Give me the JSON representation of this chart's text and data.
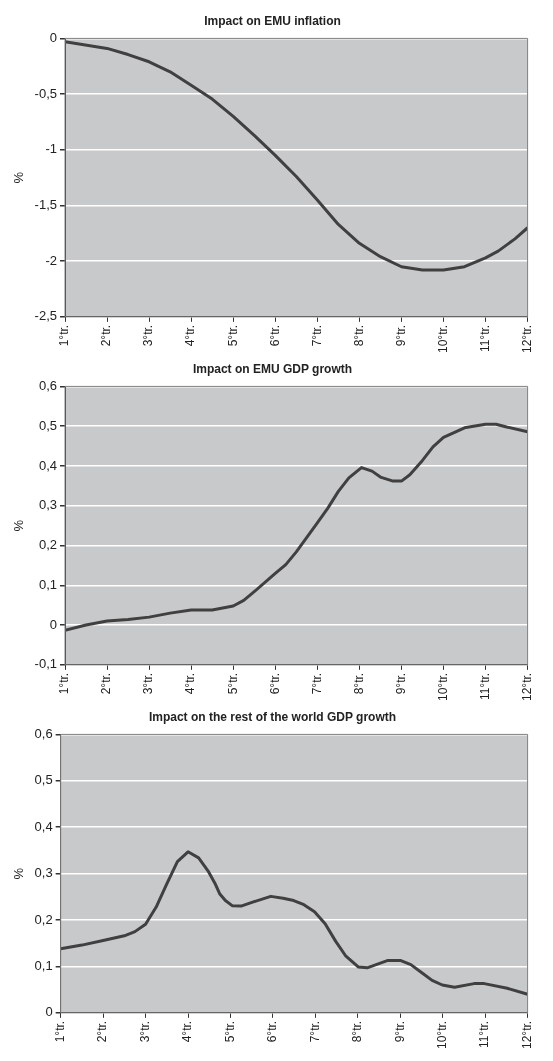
{
  "chart_data": [
    {
      "type": "line",
      "title": "Impact on EMU inflation",
      "ylabel": "%",
      "grid": "y",
      "legend": false,
      "marker": "none",
      "line_style": "solid",
      "xlim": [
        1,
        12
      ],
      "xticks": [
        {
          "value": 1,
          "label": "1°tr."
        },
        {
          "value": 2,
          "label": "2°tr."
        },
        {
          "value": 3,
          "label": "3°tr."
        },
        {
          "value": 4,
          "label": "4°tr."
        },
        {
          "value": 5,
          "label": "5°tr."
        },
        {
          "value": 6,
          "label": "6°tr."
        },
        {
          "value": 7,
          "label": "7°tr."
        },
        {
          "value": 8,
          "label": "8°tr."
        },
        {
          "value": 9,
          "label": "9°tr."
        },
        {
          "value": 10,
          "label": "10°tr."
        },
        {
          "value": 11,
          "label": "11°tr."
        },
        {
          "value": 12,
          "label": "12°tr."
        }
      ],
      "ylim": [
        -2.5,
        0
      ],
      "yticks": [
        {
          "value": -2.5,
          "label": "-2,5"
        },
        -2,
        {
          "value": -1.5,
          "label": "-1,5"
        },
        -1,
        {
          "value": -0.5,
          "label": "-0,5"
        },
        0
      ],
      "series": [
        {
          "color": "#404040",
          "x": [
            1,
            2,
            2.5,
            3,
            3.5,
            4,
            4.5,
            5,
            5.5,
            6,
            6.5,
            7,
            7.5,
            8,
            8.5,
            9,
            9.5,
            10,
            10.5,
            11,
            11.3,
            11.7,
            12
          ],
          "values": [
            -0.03,
            -0.09,
            -0.145,
            -0.21,
            -0.3,
            -0.42,
            -0.545,
            -0.7,
            -0.87,
            -1.05,
            -1.24,
            -1.45,
            -1.67,
            -1.84,
            -1.96,
            -2.05,
            -2.08,
            -2.08,
            -2.05,
            -1.97,
            -1.91,
            -1.8,
            -1.7
          ]
        }
      ]
    },
    {
      "type": "line",
      "title": "Impact on EMU GDP growth",
      "ylabel": "%",
      "grid": "y",
      "legend": false,
      "marker": "none",
      "line_style": "solid",
      "xlim": [
        1,
        12
      ],
      "xticks": [
        {
          "value": 1,
          "label": "1°tr."
        },
        {
          "value": 2,
          "label": "2°tr."
        },
        {
          "value": 3,
          "label": "3°tr."
        },
        {
          "value": 4,
          "label": "4°tr."
        },
        {
          "value": 5,
          "label": "5°tr."
        },
        {
          "value": 6,
          "label": "6°tr."
        },
        {
          "value": 7,
          "label": "7°tr."
        },
        {
          "value": 8,
          "label": "8°tr."
        },
        {
          "value": 9,
          "label": "9°tr."
        },
        {
          "value": 10,
          "label": "10°tr."
        },
        {
          "value": 11,
          "label": "11°tr."
        },
        {
          "value": 12,
          "label": "12°tr."
        }
      ],
      "ylim": [
        -0.1,
        0.6
      ],
      "yticks": [
        {
          "value": -0.1,
          "label": "-0,1"
        },
        0,
        {
          "value": 0.1,
          "label": "0,1"
        },
        {
          "value": 0.2,
          "label": "0,2"
        },
        {
          "value": 0.3,
          "label": "0,3"
        },
        {
          "value": 0.4,
          "label": "0,4"
        },
        {
          "value": 0.5,
          "label": "0,5"
        },
        {
          "value": 0.6,
          "label": "0,6"
        }
      ],
      "series": [
        {
          "color": "#404040",
          "x": [
            1,
            1.5,
            2,
            2.5,
            3,
            3.5,
            4,
            4.5,
            5,
            5.25,
            5.5,
            6,
            6.25,
            6.5,
            7,
            7.25,
            7.5,
            7.75,
            8.05,
            8.3,
            8.5,
            8.8,
            9,
            9.2,
            9.5,
            9.75,
            10,
            10.5,
            11,
            11.25,
            11.5,
            12
          ],
          "values": [
            -0.013,
            0.0,
            0.01,
            0.014,
            0.02,
            0.03,
            0.038,
            0.038,
            0.048,
            0.062,
            0.084,
            0.13,
            0.152,
            0.184,
            0.257,
            0.294,
            0.336,
            0.37,
            0.396,
            0.387,
            0.372,
            0.362,
            0.362,
            0.378,
            0.414,
            0.448,
            0.472,
            0.496,
            0.505,
            0.505,
            0.498,
            0.486
          ]
        }
      ]
    },
    {
      "type": "line",
      "title": "Impact on the rest of the world GDP growth",
      "ylabel": "%",
      "grid": "y",
      "legend": false,
      "marker": "none",
      "line_style": "solid",
      "xlim": [
        1,
        12
      ],
      "xticks": [
        {
          "value": 1,
          "label": "1°tr."
        },
        {
          "value": 2,
          "label": "2°tr."
        },
        {
          "value": 3,
          "label": "3°tr."
        },
        {
          "value": 4,
          "label": "4°tr."
        },
        {
          "value": 5,
          "label": "5°tr."
        },
        {
          "value": 6,
          "label": "6°tr."
        },
        {
          "value": 7,
          "label": "7°tr."
        },
        {
          "value": 8,
          "label": "8°tr."
        },
        {
          "value": 9,
          "label": "9°tr."
        },
        {
          "value": 10,
          "label": "10°tr."
        },
        {
          "value": 11,
          "label": "11°tr."
        },
        {
          "value": 12,
          "label": "12°tr."
        }
      ],
      "ylim": [
        0,
        0.6
      ],
      "yticks": [
        0,
        {
          "value": 0.1,
          "label": "0,1"
        },
        {
          "value": 0.2,
          "label": "0,2"
        },
        {
          "value": 0.3,
          "label": "0,3"
        },
        {
          "value": 0.4,
          "label": "0,4"
        },
        {
          "value": 0.5,
          "label": "0,5"
        },
        {
          "value": 0.6,
          "label": "0,6"
        }
      ],
      "series": [
        {
          "color": "#404040",
          "x": [
            1,
            1.5,
            2,
            2.5,
            2.75,
            3,
            3.25,
            3.5,
            3.75,
            4,
            4.25,
            4.47,
            4.63,
            4.75,
            4.88,
            5.04,
            5.25,
            5.54,
            5.95,
            6.24,
            6.49,
            6.73,
            6.98,
            7.23,
            7.48,
            7.72,
            8.01,
            8.22,
            8.71,
            9,
            9.25,
            9.5,
            9.75,
            9.99,
            10.28,
            10.74,
            10.98,
            11.52,
            12
          ],
          "values": [
            0.138,
            0.146,
            0.156,
            0.166,
            0.175,
            0.191,
            0.228,
            0.278,
            0.326,
            0.347,
            0.334,
            0.306,
            0.28,
            0.256,
            0.242,
            0.231,
            0.23,
            0.239,
            0.251,
            0.247,
            0.242,
            0.233,
            0.218,
            0.192,
            0.154,
            0.122,
            0.099,
            0.097,
            0.113,
            0.113,
            0.104,
            0.087,
            0.07,
            0.06,
            0.055,
            0.063,
            0.063,
            0.053,
            0.04
          ]
        }
      ]
    }
  ]
}
